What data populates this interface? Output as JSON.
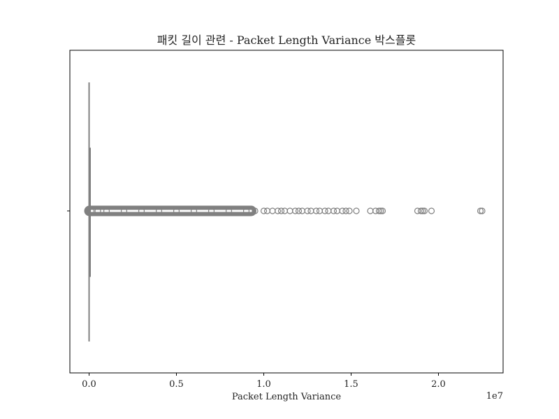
{
  "chart_data": {
    "type": "box",
    "title": "패킷 길이 관련 - Packet Length Variance 박스플롯",
    "xlabel": "Packet Length Variance",
    "ylabel": "",
    "x_scale_label": "1e7",
    "xlim": [
      -0.11,
      2.37
    ],
    "xticks": [
      {
        "value": 0.0,
        "label": "0.0"
      },
      {
        "value": 0.5,
        "label": "0.5"
      },
      {
        "value": 1.0,
        "label": "1.0"
      },
      {
        "value": 1.5,
        "label": "1.5"
      },
      {
        "value": 2.0,
        "label": "2.0"
      }
    ],
    "box": {
      "q1": 0.0,
      "median": 0.0,
      "q3": 0.001,
      "whisker_low": 0.0,
      "whisker_high": 0.003
    },
    "outliers": [
      0.012,
      0.05,
      0.1,
      0.2,
      0.3,
      0.4,
      0.5,
      0.6,
      0.7,
      0.8,
      0.9,
      0.95,
      1.0,
      1.02,
      1.05,
      1.08,
      1.1,
      1.12,
      1.15,
      1.18,
      1.2,
      1.22,
      1.25,
      1.27,
      1.3,
      1.32,
      1.35,
      1.37,
      1.4,
      1.42,
      1.45,
      1.47,
      1.49,
      1.53,
      1.61,
      1.64,
      1.66,
      1.67,
      1.68,
      1.88,
      1.9,
      1.91,
      1.92,
      1.96,
      2.24,
      2.25
    ],
    "outlier_ranges": [
      [
        0.0,
        0.93
      ]
    ],
    "grid": false,
    "colors": {
      "box": "#808080",
      "outlier": "#808080",
      "axis": "#000000"
    }
  }
}
